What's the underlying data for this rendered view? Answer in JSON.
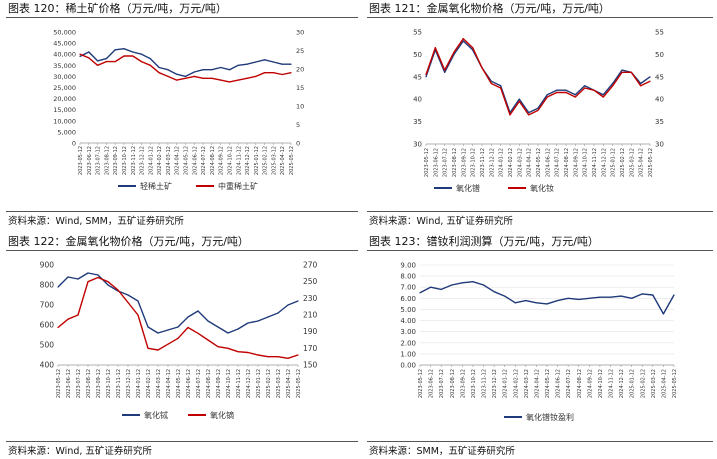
{
  "charts": [
    {
      "id": "p1",
      "title": "图表 120：稀土矿价格（万元/吨，万元/吨）",
      "source": "资料来源：Wind, SMM，五矿证券研究所",
      "chart_data": {
        "type": "line",
        "y_left": {
          "ticks": [
            "0",
            "5,000",
            "10,000",
            "15,000",
            "20,000",
            "25,000",
            "30,000",
            "35,000",
            "40,000",
            "45,000",
            "50,000"
          ],
          "range": [
            0,
            50000
          ]
        },
        "y_right": {
          "ticks": [
            "0",
            "5",
            "10",
            "15",
            "20",
            "25",
            "30"
          ],
          "range": [
            0,
            30
          ]
        },
        "x_ticks": [
          "2023-05-12",
          "2023-06-12",
          "2023-07-12",
          "2023-08-12",
          "2023-09-12",
          "2023-10-12",
          "2023-11-12",
          "2023-12-12",
          "2024-01-12",
          "2024-02-12",
          "2024-03-12",
          "2024-04-12",
          "2024-05-12",
          "2024-06-12",
          "2024-07-12",
          "2024-08-12",
          "2024-09-12",
          "2024-10-12",
          "2024-11-12",
          "2024-12-12",
          "2025-01-12",
          "2025-02-12",
          "2025-03-12",
          "2025-04-12",
          "2025-05-12"
        ],
        "series": [
          {
            "name": "轻稀土矿",
            "axis": "left",
            "color": "#1f3a7a",
            "values": [
              39000,
              41000,
              37000,
              38000,
              42000,
              42500,
              41000,
              40000,
              38000,
              34000,
              33000,
              31000,
              30000,
              32000,
              33000,
              33000,
              34000,
              33000,
              35000,
              35500,
              36500,
              37500,
              36500,
              35500,
              35500
            ]
          },
          {
            "name": "中重稀土矿",
            "axis": "right",
            "color": "#c00000",
            "values": [
              24,
              23,
              21,
              22,
              22,
              23.5,
              23.5,
              22,
              21,
              19,
              18,
              17,
              17.5,
              18,
              17.5,
              17.5,
              17,
              16.5,
              17,
              17.5,
              18,
              19,
              19,
              18.5,
              19
            ]
          }
        ],
        "legend_position": "bottom"
      }
    },
    {
      "id": "p2",
      "title": "图表 121：金属氧化物价格（万元/吨，万元/吨）",
      "source": "资料来源：Wind, 五矿证券研究所",
      "chart_data": {
        "type": "line",
        "y_left": {
          "ticks": [
            "30",
            "35",
            "40",
            "45",
            "50",
            "55"
          ],
          "range": [
            30,
            55
          ]
        },
        "y_right": {
          "ticks": [
            "30",
            "35",
            "40",
            "45",
            "50",
            "55"
          ],
          "range": [
            30,
            55
          ]
        },
        "x_ticks": [
          "2023-05-12",
          "2023-06-12",
          "2023-07-12",
          "2023-08-12",
          "2023-09-12",
          "2023-10-12",
          "2023-11-12",
          "2023-12-12",
          "2024-01-12",
          "2024-02-12",
          "2024-03-12",
          "2024-04-12",
          "2024-05-12",
          "2024-06-12",
          "2024-07-12",
          "2024-08-12",
          "2024-09-12",
          "2024-10-12",
          "2024-11-12",
          "2024-12-12",
          "2025-01-12",
          "2025-02-12",
          "2025-03-12",
          "2025-04-12",
          "2025-05-12"
        ],
        "series": [
          {
            "name": "氧化镨",
            "axis": "left",
            "color": "#1f3a7a",
            "values": [
              45,
              51,
              46,
              50,
              53,
              51,
              47,
              44,
              43,
              37,
              40,
              37,
              38,
              41,
              42,
              42,
              41,
              43,
              42,
              41,
              43.5,
              46.5,
              46,
              43.5,
              45
            ]
          },
          {
            "name": "氧化钕",
            "axis": "right",
            "color": "#c00000",
            "values": [
              45.5,
              51.5,
              46.5,
              50.5,
              53.5,
              51.5,
              47,
              43.5,
              42.5,
              36.5,
              39.5,
              36.5,
              37.5,
              40.5,
              41.5,
              41.5,
              40.5,
              42.5,
              42,
              40.5,
              43,
              46,
              46,
              43,
              44
            ]
          }
        ],
        "legend_position": "bottom"
      }
    },
    {
      "id": "p3",
      "title": "图表 122：金属氧化物价格（万元/吨，万元/吨）",
      "source": "资料来源：Wind, 五矿证券研究所",
      "chart_data": {
        "type": "line",
        "y_left": {
          "ticks": [
            "400",
            "500",
            "600",
            "700",
            "800",
            "900"
          ],
          "range": [
            400,
            900
          ]
        },
        "y_right": {
          "ticks": [
            "150",
            "170",
            "190",
            "210",
            "230",
            "250",
            "270"
          ],
          "range": [
            150,
            270
          ]
        },
        "x_ticks": [
          "2023-05-12",
          "2023-06-12",
          "2023-07-12",
          "2023-08-12",
          "2023-09-12",
          "2023-10-12",
          "2023-11-12",
          "2023-12-12",
          "2024-01-12",
          "2024-02-12",
          "2024-03-12",
          "2024-04-12",
          "2024-05-12",
          "2024-06-12",
          "2024-07-12",
          "2024-08-12",
          "2024-09-12",
          "2024-10-12",
          "2024-11-12",
          "2024-12-12",
          "2025-01-12",
          "2025-02-12",
          "2025-03-12",
          "2025-04-12",
          "2025-05-12"
        ],
        "series": [
          {
            "name": "氧化铽",
            "axis": "left",
            "color": "#1f3a7a",
            "values": [
              790,
              840,
              830,
              860,
              850,
              800,
              770,
              750,
              720,
              590,
              560,
              575,
              590,
              640,
              670,
              620,
              590,
              560,
              580,
              610,
              620,
              640,
              660,
              700,
              720
            ]
          },
          {
            "name": "氧化镝",
            "axis": "right",
            "color": "#c00000",
            "values": [
              195,
              205,
              210,
              250,
              255,
              250,
              240,
              225,
              210,
              170,
              168,
              175,
              182,
              195,
              188,
              180,
              172,
              170,
              166,
              165,
              162,
              160,
              160,
              158,
              162
            ]
          }
        ],
        "legend_position": "bottom"
      }
    },
    {
      "id": "p4",
      "title": "图表 123：镨钕利润测算（万元/吨，万元/吨）",
      "source": "资料来源：SMM，五矿证券研究所",
      "chart_data": {
        "type": "line",
        "y_left": {
          "ticks": [
            "0.00",
            "1.00",
            "2.00",
            "3.00",
            "4.00",
            "5.00",
            "6.00",
            "7.00",
            "8.00",
            "9.00"
          ],
          "range": [
            0,
            9
          ]
        },
        "x_ticks": [
          "2023-05-12",
          "2023-06-12",
          "2023-07-12",
          "2023-08-12",
          "2023-09-12",
          "2023-10-12",
          "2023-11-12",
          "2023-12-12",
          "2024-01-12",
          "2024-02-12",
          "2024-03-12",
          "2024-04-12",
          "2024-05-12",
          "2024-06-12",
          "2024-07-12",
          "2024-08-12",
          "2024-09-12",
          "2024-10-12",
          "2024-11-12",
          "2024-12-12",
          "2025-01-12",
          "2025-02-12",
          "2025-03-12",
          "2025-04-12",
          "2025-05-12"
        ],
        "series": [
          {
            "name": "氧化镨钕盈利",
            "axis": "left",
            "color": "#1f3a7a",
            "values": [
              6.5,
              7.0,
              6.8,
              7.2,
              7.4,
              7.5,
              7.2,
              6.6,
              6.2,
              5.6,
              5.8,
              5.6,
              5.5,
              5.8,
              6.0,
              5.9,
              6.0,
              6.1,
              6.1,
              6.2,
              6.0,
              6.4,
              6.3,
              4.6,
              6.3
            ]
          }
        ],
        "legend_position": "bottom"
      }
    }
  ]
}
